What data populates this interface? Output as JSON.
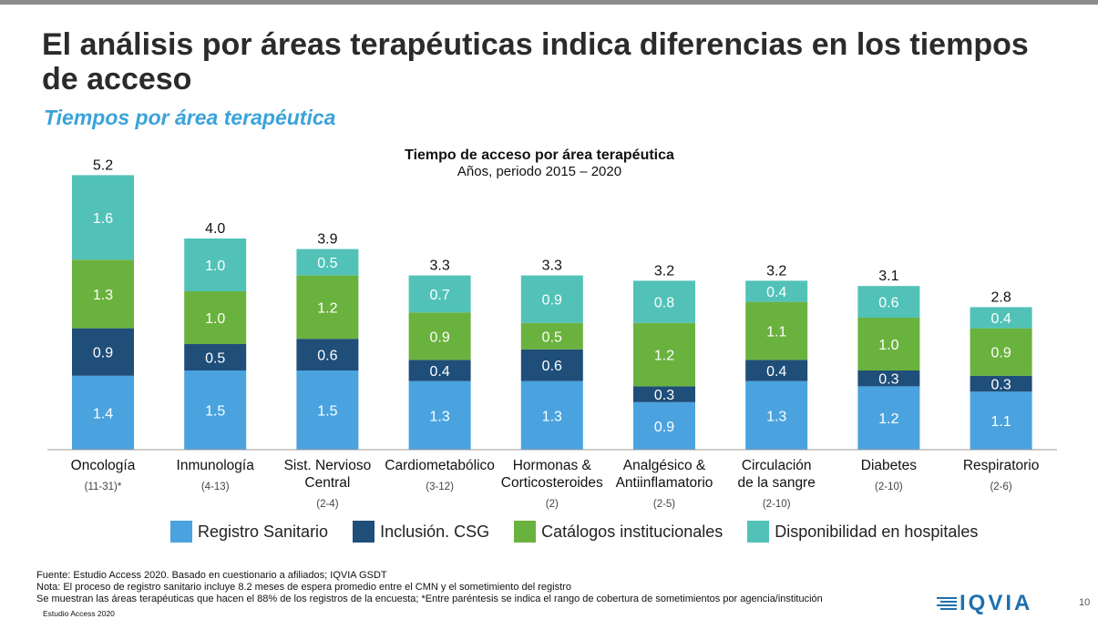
{
  "slide": {
    "title": "El análisis por áreas terapéuticas indica diferencias en los tiempos de acceso",
    "subtitle": "Tiempos por área terapéutica",
    "page_number": "10"
  },
  "chart_data": {
    "type": "bar",
    "stacked": true,
    "title": "Tiempo de acceso por área terapéutica",
    "subtitle": "Años, periodo 2015 – 2020",
    "categories": [
      [
        "Oncología"
      ],
      [
        "Inmunología"
      ],
      [
        "Sist. Nervioso",
        "Central"
      ],
      [
        "Cardiometabólico"
      ],
      [
        "Hormonas &",
        "Corticosteroides"
      ],
      [
        "Analgésico &",
        "Antiinflamatorio"
      ],
      [
        "Circulación",
        "de la sangre"
      ],
      [
        "Diabetes"
      ],
      [
        "Respiratorio"
      ]
    ],
    "ranges": [
      "(11-31)*",
      "(4-13)",
      "(2-4)",
      "(3-12)",
      "(2)",
      "(2-5)",
      "(2-10)",
      "(2-10)",
      "(2-6)"
    ],
    "totals": [
      "5.2",
      "4.0",
      "3.9",
      "3.3",
      "3.3",
      "3.2",
      "3.2",
      "3.1",
      "2.8"
    ],
    "series": [
      {
        "name": "Registro Sanitario",
        "color": "#4aa3df",
        "values": [
          1.4,
          1.5,
          1.5,
          1.3,
          1.3,
          0.9,
          1.3,
          1.2,
          1.1
        ]
      },
      {
        "name": "Inclusión. CSG",
        "color": "#1f4e79",
        "values": [
          0.9,
          0.5,
          0.6,
          0.4,
          0.6,
          0.3,
          0.4,
          0.3,
          0.3
        ]
      },
      {
        "name": "Catálogos institucionales",
        "color": "#6ab23e",
        "values": [
          1.3,
          1.0,
          1.2,
          0.9,
          0.5,
          1.2,
          1.1,
          1.0,
          0.9
        ]
      },
      {
        "name": "Disponibilidad en hospitales",
        "color": "#52c2b8",
        "values": [
          1.6,
          1.0,
          0.5,
          0.7,
          0.9,
          0.8,
          0.4,
          0.6,
          0.4
        ]
      }
    ],
    "legend_position": "bottom",
    "grid": false
  },
  "footer": {
    "source": "Fuente: Estudio Access 2020. Basado en cuestionario a afiliados; IQVIA GSDT",
    "note": "Nota: El proceso de registro sanitario incluye 8.2 meses de espera promedio entre el CMN y el sometimiento del registro",
    "detail": "Se muestran las áreas terapéuticas que hacen el 88% de los registros de la encuesta; *Entre paréntesis se indica el rango de cobertura de sometimientos por agencia/institución",
    "study": "Estudio Access 2020",
    "logo": "IQVIA"
  }
}
